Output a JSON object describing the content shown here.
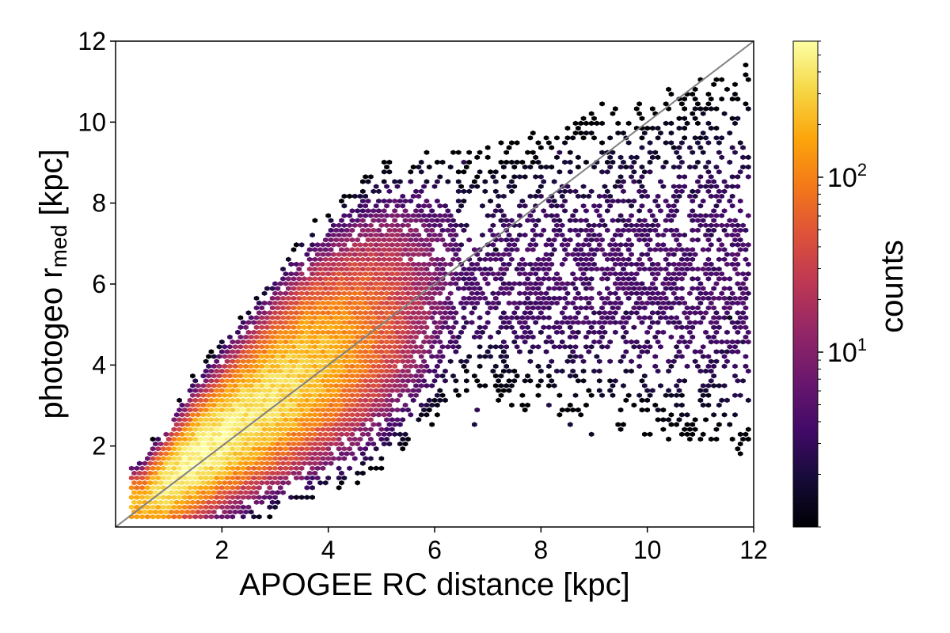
{
  "chart_data": {
    "type": "hexbin",
    "xlabel": "APOGEE RC distance [kpc]",
    "ylabel_main": "photogeo r",
    "ylabel_sub": "med",
    "ylabel_unit": " [kpc]",
    "xlim": [
      0,
      12
    ],
    "ylim": [
      0,
      12
    ],
    "xticks": [
      2,
      4,
      6,
      8,
      10,
      12
    ],
    "yticks": [
      2,
      4,
      6,
      8,
      10,
      12
    ],
    "identity_line": {
      "from": [
        0,
        0
      ],
      "to": [
        12,
        12
      ],
      "color": "#808080"
    },
    "colorbar": {
      "label": "counts",
      "scale": "log",
      "range": [
        1,
        600
      ],
      "ticks": [
        {
          "base": "10",
          "exp": "1"
        },
        {
          "base": "10",
          "exp": "2"
        }
      ],
      "colormap": "inferno"
    },
    "density_ridge": [
      {
        "x": 0.5,
        "y": 0.6,
        "count": 200
      },
      {
        "x": 1.0,
        "y": 1.1,
        "count": 450
      },
      {
        "x": 1.5,
        "y": 1.7,
        "count": 550
      },
      {
        "x": 2.0,
        "y": 2.2,
        "count": 500
      },
      {
        "x": 2.5,
        "y": 2.7,
        "count": 420
      },
      {
        "x": 3.0,
        "y": 3.2,
        "count": 380
      },
      {
        "x": 3.5,
        "y": 3.7,
        "count": 300
      },
      {
        "x": 4.0,
        "y": 4.1,
        "count": 200
      },
      {
        "x": 4.5,
        "y": 4.5,
        "count": 120
      },
      {
        "x": 5.0,
        "y": 4.9,
        "count": 60
      },
      {
        "x": 5.5,
        "y": 5.3,
        "count": 25
      },
      {
        "x": 6.0,
        "y": 5.7,
        "count": 10
      },
      {
        "x": 6.5,
        "y": 6.0,
        "count": 4
      }
    ]
  }
}
